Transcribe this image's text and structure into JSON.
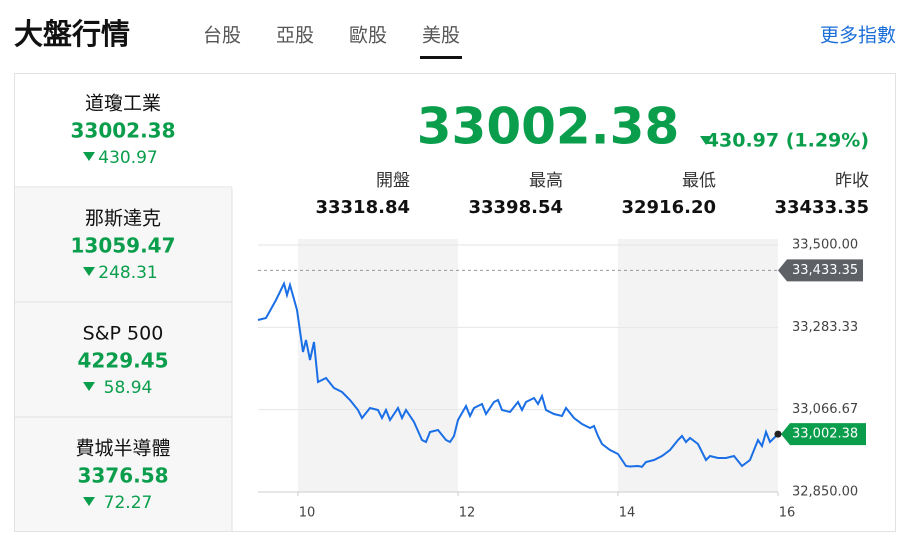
{
  "header": {
    "title": "大盤行情",
    "tabs": [
      "台股",
      "亞股",
      "歐股",
      "美股"
    ],
    "active_tab": 3,
    "more": "更多指數"
  },
  "indices": [
    {
      "name": "道瓊工業",
      "value": "33002.38",
      "change": "430.97"
    },
    {
      "name": "那斯達克",
      "value": "13059.47",
      "change": "248.31"
    },
    {
      "name": "S&P 500",
      "value": "4229.45",
      "change": "58.94"
    },
    {
      "name": "費城半導體",
      "value": "3376.58",
      "change": "72.27"
    }
  ],
  "main": {
    "value": "33002.38",
    "change": "430.97 (1.29%)",
    "stats": [
      {
        "label": "開盤",
        "value": "33318.84"
      },
      {
        "label": "最高",
        "value": "33398.54"
      },
      {
        "label": "最低",
        "value": "32916.20"
      },
      {
        "label": "昨收",
        "value": "33433.35"
      }
    ]
  },
  "chart": {
    "type": "line",
    "color": "#1a6fe6",
    "x": [
      9.5,
      9.6,
      9.725,
      9.825,
      9.8625,
      9.9,
      9.9875,
      10.0625,
      10.1,
      10.15,
      10.2,
      10.25,
      10.35,
      10.45,
      10.55,
      10.65,
      10.75,
      10.8,
      10.9,
      11.0,
      11.05,
      11.1,
      11.15,
      11.25,
      11.3,
      11.35,
      11.45,
      11.55,
      11.6,
      11.65,
      11.75,
      11.85,
      11.9,
      11.95,
      12.0,
      12.1,
      12.15,
      12.2,
      12.3,
      12.35,
      12.45,
      12.5,
      12.55,
      12.65,
      12.75,
      12.8,
      12.85,
      12.95,
      13.0,
      13.05,
      13.1,
      13.2,
      13.3,
      13.35,
      13.45,
      13.55,
      13.65,
      13.7,
      13.75,
      13.8,
      13.9,
      14.0,
      14.1,
      14.15,
      14.25,
      14.3,
      14.35,
      14.45,
      14.55,
      14.65,
      14.75,
      14.8,
      14.85,
      14.9,
      15.0,
      15.1,
      15.15,
      15.25,
      15.35,
      15.45,
      15.55,
      15.65,
      15.75,
      15.8,
      15.85,
      15.9,
      16.0
    ],
    "values": [
      33302.6,
      33307.9,
      33355.3,
      33398.5,
      33368.4,
      33394.7,
      33328.9,
      33218.4,
      33250.0,
      33197.4,
      33244.7,
      33139.5,
      33150.0,
      33123.7,
      33113.2,
      33092.1,
      33065.8,
      33044.7,
      33071.1,
      33065.8,
      33044.7,
      33065.8,
      33039.5,
      33071.1,
      33044.7,
      33065.8,
      33034.2,
      32986.8,
      32981.6,
      33007.9,
      33013.2,
      32986.8,
      32981.6,
      32997.4,
      33039.5,
      33076.3,
      33050.0,
      33071.1,
      33081.6,
      33055.3,
      33086.8,
      33092.1,
      33065.8,
      33060.5,
      33086.8,
      33065.8,
      33086.8,
      33097.4,
      33081.6,
      33102.6,
      33065.8,
      33055.3,
      33050.0,
      33071.1,
      33044.7,
      33028.9,
      33018.4,
      33023.7,
      32997.4,
      32976.3,
      32960.5,
      32950.0,
      32918.4,
      32917.0,
      32918.4,
      32916.2,
      32928.9,
      32934.2,
      32944.7,
      32960.5,
      32986.8,
      32997.4,
      32981.6,
      32992.1,
      32976.3,
      32934.2,
      32944.7,
      32939.5,
      32939.5,
      32944.7,
      32918.4,
      32934.2,
      32986.8,
      32971.1,
      33007.9,
      32981.6,
      33002.38
    ],
    "xlim": [
      9.5,
      16
    ],
    "xticks": [
      10,
      12,
      14,
      16
    ],
    "ylim": [
      32850,
      33500
    ],
    "yticks": [
      {
        "value": 32850,
        "label": "32,850.00"
      },
      {
        "value": 33066.67,
        "label": "33,066.67"
      },
      {
        "value": 33283.33,
        "label": "33,283.33"
      },
      {
        "value": 33500,
        "label": "33,500.00"
      }
    ],
    "reference": {
      "value": 33433.35,
      "label": "33,433.35"
    },
    "last": {
      "value": 33002.38,
      "label": "33,002.38"
    }
  }
}
